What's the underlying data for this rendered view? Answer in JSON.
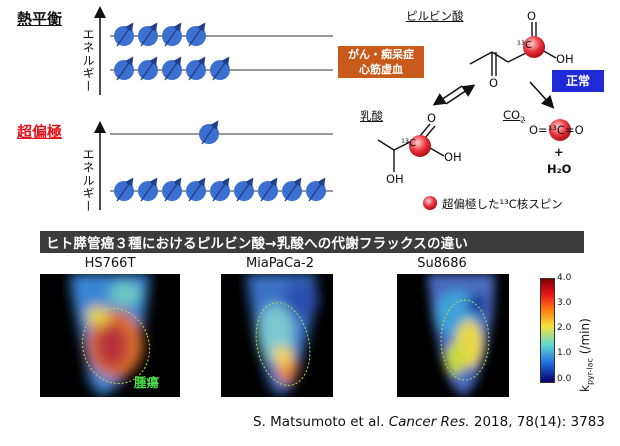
{
  "thermal": {
    "title": "熱平衡",
    "energy_label": "エネルギー"
  },
  "hyper": {
    "title": "超偏極",
    "energy_label": "エネルギー"
  },
  "chem": {
    "pyruvate": "ピルビン酸",
    "lactate": "乳酸",
    "co2": "CO",
    "co2_sub": "2",
    "cancer_box": "がん・痴呆症\n心筋虚血",
    "normal_box": "正常",
    "plus": "+",
    "h2o": "H₂O",
    "legend": "超偏極した¹³C核スピン",
    "atoms": {
      "O": "O",
      "OH": "OH",
      "C13": "¹³C",
      "OC13O": "O=¹³C=O"
    }
  },
  "banner": "ヒト膵管癌３種におけるピルビン酸→乳酸への代謝フラックスの違い",
  "images": [
    {
      "label": "HS766T"
    },
    {
      "label": "MiaPaCa-2"
    },
    {
      "label": "Su8686"
    }
  ],
  "tumor_label": "腫瘍",
  "colorbar": {
    "ticks": [
      "4.0",
      "3.0",
      "2.0",
      "1.0",
      "0.0"
    ],
    "ylabel": "k",
    "ylabel_sub": "pyr-lac",
    "ylabel_unit": " (/min)"
  },
  "citation": {
    "authors": "S. Matsumoto et al. ",
    "journal": "Cancer Res.",
    "rest": " 2018, 78(14): 3783"
  },
  "colors": {
    "spin": "#3b6fd0",
    "hyper_text": "#e8141c",
    "cancer_box": "#c85a1c",
    "normal_box": "#1f2ad6",
    "banner": "#3c3c3c"
  }
}
